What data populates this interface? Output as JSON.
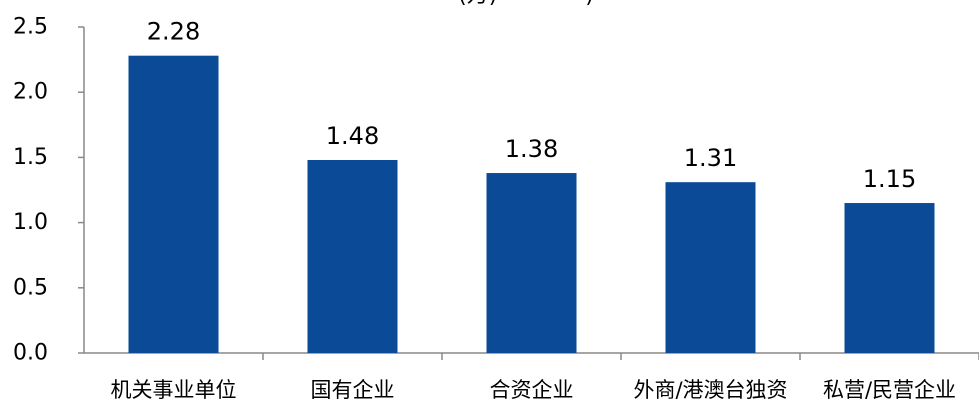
{
  "chart_data": {
    "type": "bar",
    "title": "(万)　　　　)",
    "categories": [
      "机关事业单位",
      "国有企业",
      "合资企业",
      "外商/港澳台独资",
      "私营/民营企业"
    ],
    "values": [
      2.28,
      1.48,
      1.38,
      1.31,
      1.15
    ],
    "data_labels": [
      "2.28",
      "1.48",
      "1.38",
      "1.31",
      "1.15"
    ],
    "ylim": [
      0,
      2.5
    ],
    "yticks": [
      0.0,
      0.5,
      1.0,
      1.5,
      2.0,
      2.5
    ],
    "ytick_labels": [
      "0.0",
      "0.5",
      "1.0",
      "1.5",
      "2.0",
      "2.5"
    ],
    "xlabel": "",
    "ylabel": "",
    "grid": false,
    "legend": "none",
    "bar_color": "#0A4A96",
    "axis_color": "#888888"
  }
}
